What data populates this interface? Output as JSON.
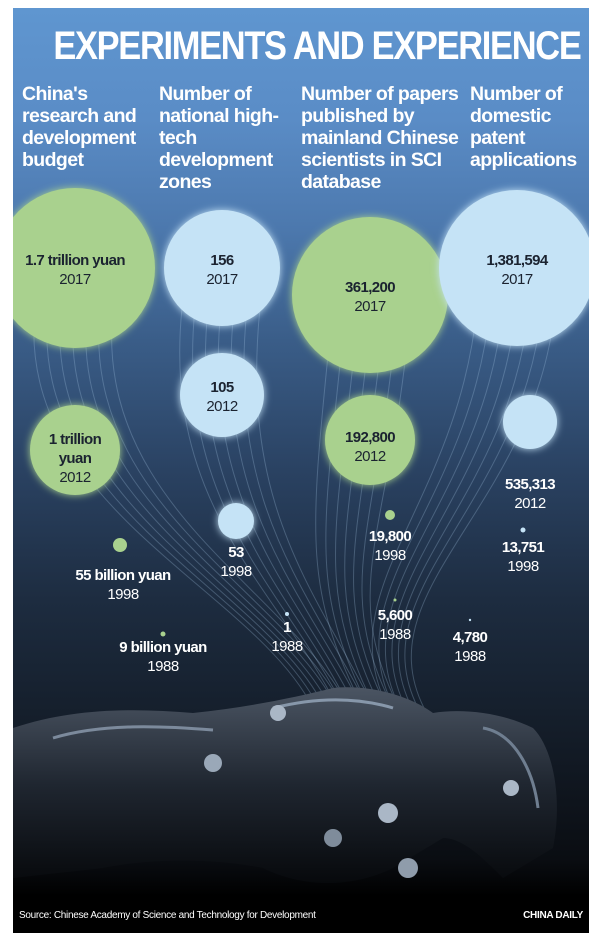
{
  "title": "EXPERIMENTS AND EXPERIENCE",
  "chart_data": {
    "type": "bubble",
    "title": "EXPERIMENTS AND EXPERIENCE",
    "years": [
      "1988",
      "1998",
      "2012",
      "2017"
    ],
    "series": [
      {
        "name": "China's research and development budget",
        "unit": "billion yuan",
        "values": [
          9,
          55,
          1000,
          1700
        ],
        "labels": [
          "9 billion yuan",
          "55 billion yuan",
          "1 trillion yuan",
          "1.7 trillion yuan"
        ],
        "color": "#a9d18e"
      },
      {
        "name": "Number of national high-tech development zones",
        "values": [
          1,
          53,
          105,
          156
        ],
        "labels": [
          "1",
          "53",
          "105",
          "156"
        ],
        "color": "#c5e3f6"
      },
      {
        "name": "Number of papers published by mainland Chinese scientists in SCI database",
        "values": [
          5600,
          19800,
          192800,
          361200
        ],
        "labels": [
          "5,600",
          "19,800",
          "192,800",
          "361,200"
        ],
        "color": "#a9d18e"
      },
      {
        "name": "Number of domestic patent applications",
        "values": [
          4780,
          13751,
          535313,
          1381594
        ],
        "labels": [
          "4,780",
          "13,751",
          "535,313",
          "1,381,594"
        ],
        "color": "#c5e3f6"
      }
    ]
  },
  "footer": {
    "source": "Source: Chinese Academy of Science and Technology for Development",
    "brand": "CHINA DAILY"
  }
}
